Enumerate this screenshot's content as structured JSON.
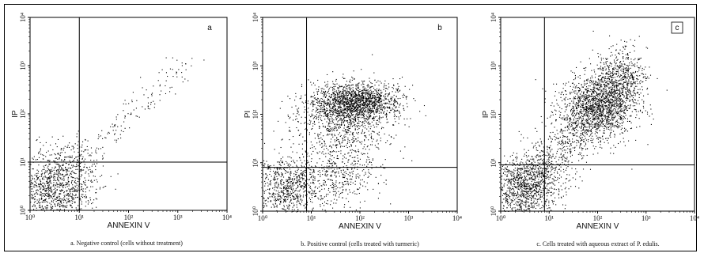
{
  "chart_data": [
    {
      "type": "scatter",
      "panel_label": "a",
      "badge_box": false,
      "caption": "a. Negative control (cells without treatment)",
      "xlabel": "ANNEXIN V",
      "ylabel": "IP",
      "x_scale": "log",
      "y_scale": "log",
      "xlim": [
        1,
        10000
      ],
      "ylim": [
        1,
        10000
      ],
      "x_ticks": [
        "10⁰",
        "10¹",
        "10²",
        "10³",
        "10⁴"
      ],
      "y_ticks": [
        "10⁰",
        "10¹",
        "10²",
        "10³",
        "10⁴"
      ],
      "quadrant_gate": {
        "x": 10,
        "y": 10
      },
      "clusters": [
        {
          "center": [
            3,
            2.5
          ],
          "spread": [
            0.4,
            0.35
          ],
          "count": 950
        },
        {
          "center": [
            4,
            10
          ],
          "spread": [
            0.35,
            0.25
          ],
          "count": 120
        },
        {
          "center": [
            10,
            8
          ],
          "spread": [
            0.3,
            0.3
          ],
          "count": 110
        }
      ],
      "diagonal": {
        "from": [
          10,
          10
        ],
        "to": [
          1400,
          1200
        ],
        "count": 150,
        "jitter": 0.15
      }
    },
    {
      "type": "scatter",
      "panel_label": "b",
      "badge_box": false,
      "caption": "b. Positive control (cells treated with turmeric)",
      "xlabel": "ANNEXIN V",
      "ylabel": "PI",
      "x_scale": "log",
      "y_scale": "log",
      "xlim": [
        1,
        10000
      ],
      "ylim": [
        1,
        10000
      ],
      "x_ticks": [
        "10⁰",
        "10¹",
        "10²",
        "10³",
        "10⁴"
      ],
      "y_ticks": [
        "10⁰",
        "10¹",
        "10²",
        "10³",
        "10⁴"
      ],
      "quadrant_gate": {
        "x": 8,
        "y": 8
      },
      "clusters": [
        {
          "center": [
            80,
            180
          ],
          "spread": [
            0.45,
            0.2
          ],
          "count": 1600
        },
        {
          "center": [
            40,
            60
          ],
          "spread": [
            0.5,
            0.35
          ],
          "count": 700
        },
        {
          "center": [
            3,
            3
          ],
          "spread": [
            0.35,
            0.35
          ],
          "count": 750
        },
        {
          "center": [
            30,
            5
          ],
          "spread": [
            0.45,
            0.3
          ],
          "count": 400
        }
      ],
      "diagonal": null
    },
    {
      "type": "scatter",
      "panel_label": "c",
      "badge_box": true,
      "caption": "c. Cells treated with aqueous extract of P. edulis.",
      "xlabel": "ANNEXIN V",
      "ylabel": "IP",
      "x_scale": "log",
      "y_scale": "log",
      "xlim": [
        1,
        10000
      ],
      "ylim": [
        1,
        10000
      ],
      "x_ticks": [
        "10⁰",
        "10¹",
        "10²",
        "10³",
        "10⁴"
      ],
      "y_ticks": [
        "10⁰",
        "10¹",
        "10²",
        "10³",
        "10⁴"
      ],
      "quadrant_gate": {
        "x": 8,
        "y": 9
      },
      "clusters": [
        {
          "center": [
            3,
            3
          ],
          "spread": [
            0.4,
            0.35
          ],
          "count": 900
        },
        {
          "center": [
            100,
            150
          ],
          "spread": [
            0.4,
            0.35
          ],
          "count": 1300
        },
        {
          "center": [
            300,
            700
          ],
          "spread": [
            0.25,
            0.3
          ],
          "count": 350
        }
      ],
      "diagonal": {
        "from": [
          2,
          2
        ],
        "to": [
          500,
          700
        ],
        "count": 1200,
        "jitter": 0.25
      }
    }
  ]
}
